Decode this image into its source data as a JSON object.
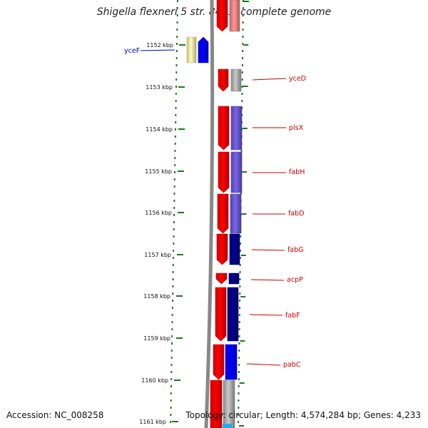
{
  "title": "Shigella flexneri 5 str. 8401, complete genome",
  "accession": "Accession: NC_008258",
  "summary": "Topology: circular; Length: 4,574,284 bp; Genes: 4,233",
  "colors": {
    "backbone": "#888888",
    "tick": "#1a7a1a",
    "forward_label": "#cc0000",
    "reverse_label": "#0000cc",
    "cds_red": "#ff0000",
    "cds_blue": "#0000ff",
    "cds_purple": "#6655cc",
    "cds_navy": "#000080",
    "cds_gray": "#aaaaaa",
    "cds_pink": "#f08080",
    "cds_yellow": "#f5eea0"
  },
  "ticks": [
    "1152 kbp",
    "1153 kbp",
    "1154 kbp",
    "1155 kbp",
    "1156 kbp",
    "1157 kbp",
    "1158 kbp",
    "1159 kbp",
    "1160 kbp",
    "1161 kbp"
  ],
  "genes": [
    {
      "name": "yceF",
      "strand": "reverse"
    },
    {
      "name": "yceD",
      "strand": "forward"
    },
    {
      "name": "plsX",
      "strand": "forward"
    },
    {
      "name": "fabH",
      "strand": "forward"
    },
    {
      "name": "fabD",
      "strand": "forward"
    },
    {
      "name": "fabG",
      "strand": "forward"
    },
    {
      "name": "acpP",
      "strand": "forward"
    },
    {
      "name": "fabF",
      "strand": "forward"
    },
    {
      "name": "pabC",
      "strand": "forward"
    }
  ]
}
